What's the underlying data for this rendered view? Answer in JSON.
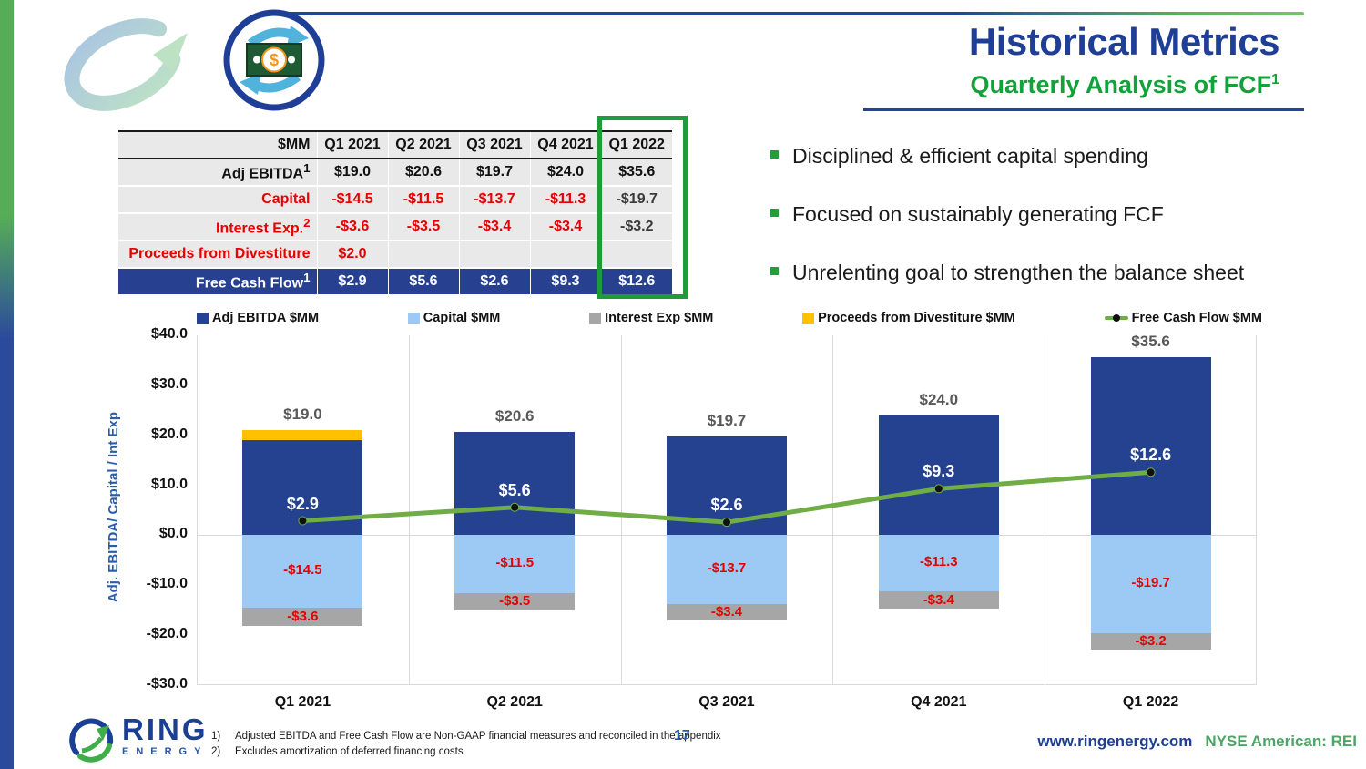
{
  "header": {
    "title": "Historical Metrics",
    "subtitle": "Quarterly Analysis of FCF",
    "subtitle_sup": "1"
  },
  "bullets": [
    "Disciplined & efficient capital spending",
    "Focused on sustainably generating FCF",
    "Unrelenting goal to strengthen the balance sheet"
  ],
  "table": {
    "header": [
      "$MM",
      "Q1 2021",
      "Q2 2021",
      "Q3 2021",
      "Q4 2021",
      "Q1 2022"
    ],
    "rows": [
      {
        "label": "Adj EBITDA",
        "sup": "1",
        "style": "bold",
        "values": [
          "$19.0",
          "$20.6",
          "$19.7",
          "$24.0",
          "$35.6"
        ]
      },
      {
        "label": "Capital",
        "sup": "",
        "style": "red",
        "values": [
          "-$14.5",
          "-$11.5",
          "-$13.7",
          "-$11.3",
          "-$19.7"
        ]
      },
      {
        "label": "Interest Exp.",
        "sup": "2",
        "style": "red",
        "values": [
          "-$3.6",
          "-$3.5",
          "-$3.4",
          "-$3.4",
          "-$3.2"
        ]
      },
      {
        "label": "Proceeds from Divestiture",
        "sup": "",
        "style": "red",
        "values": [
          "$2.0",
          "",
          "",
          "",
          ""
        ]
      },
      {
        "label": "Free Cash Flow",
        "sup": "1",
        "style": "fcf",
        "values": [
          "$2.9",
          "$5.6",
          "$2.6",
          "$9.3",
          "$12.6"
        ]
      }
    ],
    "highlighted_column": "Q1 2022"
  },
  "chart_data": {
    "type": "bar+line (stacked combo)",
    "categories": [
      "Q1 2021",
      "Q2 2021",
      "Q3 2021",
      "Q4 2021",
      "Q1 2022"
    ],
    "series": [
      {
        "name": "Adj EBITDA $MM",
        "type": "bar",
        "color": "#24428F",
        "values": [
          19.0,
          20.6,
          19.7,
          24.0,
          35.6
        ]
      },
      {
        "name": "Capital $MM",
        "type": "bar",
        "color": "#9DC9F5",
        "values": [
          -14.5,
          -11.5,
          -13.7,
          -11.3,
          -19.7
        ]
      },
      {
        "name": "Interest Exp $MM",
        "type": "bar",
        "color": "#A6A6A6",
        "values": [
          -3.6,
          -3.5,
          -3.4,
          -3.4,
          -3.2
        ]
      },
      {
        "name": "Proceeds from Divestiture $MM",
        "type": "bar",
        "color": "#FFC000",
        "values": [
          2.0,
          0,
          0,
          0,
          0
        ]
      },
      {
        "name": "Free Cash Flow $MM",
        "type": "line",
        "color": "#70AD47",
        "values": [
          2.9,
          5.6,
          2.6,
          9.3,
          12.6
        ]
      }
    ],
    "ylabel": "Adj. EBITDA/ Capital / Int Exp",
    "ylim": [
      -30,
      40
    ],
    "yticks": [
      "$40.0",
      "$30.0",
      "$20.0",
      "$10.0",
      "$0.0",
      "-$10.0",
      "-$20.0",
      "-$30.0"
    ],
    "legend_position": "top",
    "grid": "vertical category separators + zero line"
  },
  "footer": {
    "logo_text": "RING",
    "logo_subtext": "ENERGY",
    "footnotes": [
      {
        "num": "1)",
        "text": "Adjusted EBITDA and Free Cash Flow are Non-GAAP financial measures and reconciled in the appendix"
      },
      {
        "num": "2)",
        "text": "Excludes amortization of deferred financing costs"
      }
    ],
    "page_number": "17",
    "website": "www.ringenergy.com",
    "ticker": "NYSE American: REI"
  },
  "colors": {
    "title_blue": "#1F3F96",
    "subtitle_green": "#12A13B",
    "highlight_border_green": "#1E9C3B",
    "fcf_row_blue": "#27408F",
    "negative_red": "#E60000",
    "edge_strip_top": "#55AE57",
    "edge_strip_bottom": "#2C4A9C"
  }
}
